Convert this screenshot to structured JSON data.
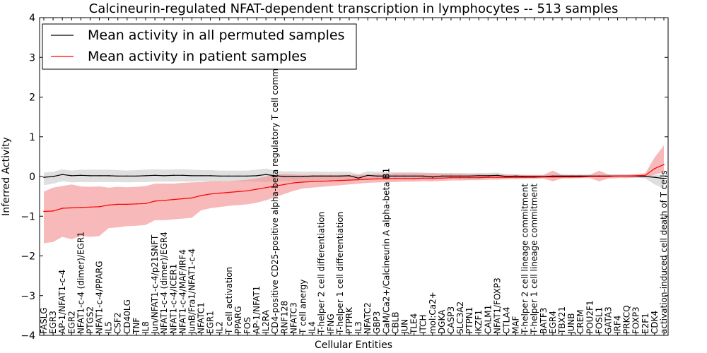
{
  "chart_data": {
    "type": "line",
    "title": "Calcineurin-regulated NFAT-dependent transcription in lymphocytes -- 513 samples",
    "xlabel": "Cellular Entities",
    "ylabel": "Inferred Activity",
    "ylim": [
      -4,
      4
    ],
    "yticks": [
      -4,
      -3,
      -2,
      -1,
      0,
      1,
      2,
      3,
      4
    ],
    "legend_position": "top-left",
    "categories": [
      "FASLG",
      "EGR3",
      "AP-1/NFAT1-c-4",
      "EGR2",
      "NFAT1-c-4 (dimer)/EGR1",
      "PTGS2",
      "NFAT1-c-4/PPARG",
      "IL5",
      "CSF2",
      "CD40LG",
      "TNF",
      "IL8",
      "Jun/NFAT1-c-4/p21SNFT",
      "NFAT1-c-4 (dimer)/EGR4",
      "NFAT1-c-4/ICER1",
      "NFAT1-c-4/MAF/IRF4",
      "JunB/Fra1/NFAT1-c-4",
      "NFATC1",
      "EGR1",
      "IL2",
      "T cell activation",
      "PPARG",
      "FOS",
      "AP-1/NFAT1",
      "IL2RA",
      "CD4-positive CD25-positive alpha-beta regulatory T cell commitment",
      "RNF128",
      "NFATC3",
      "T cell anergy",
      "IL4",
      "T-helper 2 cell differentiation",
      "IFNG",
      "T-helper 1 cell differentiation",
      "PTPRK",
      "IL3",
      "NFATC2",
      "GBP3",
      "CaM/Ca2+/Calcineurin A alpha-beta B1",
      "CBLB",
      "JUN",
      "TLE4",
      "ITCH",
      "mol:Ca2+",
      "DGKA",
      "CASP3",
      "SLC3A2",
      "PTPN1",
      "IKZF1",
      "CALM1",
      "NFAT1/FOXP3",
      "CTLA4",
      "MAF",
      "T-helper 2 cell lineage commitment",
      "T-helper 1 cell lineage commitment",
      "BATF3",
      "EGR4",
      "TBX21",
      "JUNB",
      "CREM",
      "POU2F1",
      "FOSL1",
      "GATA3",
      "IRF4",
      "PRKCQ",
      "FOXP3",
      "E2F1",
      "CDK4",
      "activation-induced cell death of T cells"
    ],
    "series": [
      {
        "name": "Mean activity in all permuted samples",
        "color": "#000000",
        "band_color": "#c0c0c0",
        "values": [
          -0.02,
          0.0,
          0.05,
          0.02,
          0.03,
          0.02,
          0.02,
          0.02,
          0.01,
          0.01,
          0.01,
          0.02,
          0.03,
          0.02,
          0.03,
          0.03,
          0.02,
          0.02,
          0.02,
          0.01,
          0.01,
          0.01,
          0.01,
          0.02,
          0.05,
          0.02,
          0.0,
          0.0,
          0.0,
          0.01,
          0.01,
          0.01,
          0.01,
          0.02,
          -0.04,
          0.03,
          0.01,
          0.01,
          0.01,
          0.01,
          0.01,
          0.01,
          -0.01,
          0.01,
          0.01,
          0.01,
          0.01,
          0.02,
          0.02,
          0.03,
          0.0,
          0.01,
          0.0,
          0.0,
          0.0,
          0.01,
          0.01,
          0.01,
          0.01,
          0.01,
          0.01,
          0.01,
          0.01,
          0.01,
          0.01,
          0.0,
          -0.02,
          -0.05
        ],
        "lower": [
          -0.22,
          -0.18,
          -0.12,
          -0.15,
          -0.14,
          -0.14,
          -0.14,
          -0.14,
          -0.14,
          -0.15,
          -0.14,
          -0.14,
          -0.13,
          -0.13,
          -0.13,
          -0.13,
          -0.13,
          -0.12,
          -0.12,
          -0.13,
          -0.12,
          -0.12,
          -0.12,
          -0.13,
          -0.14,
          -0.12,
          -0.12,
          -0.12,
          -0.12,
          -0.12,
          -0.11,
          -0.11,
          -0.1,
          -0.08,
          -0.1,
          -0.07,
          -0.07,
          -0.07,
          -0.07,
          -0.08,
          -0.09,
          -0.08,
          -0.1,
          -0.05,
          -0.05,
          -0.05,
          -0.05,
          -0.05,
          -0.04,
          -0.04,
          -0.04,
          -0.03,
          -0.03,
          -0.03,
          -0.03,
          -0.03,
          -0.03,
          -0.03,
          -0.02,
          -0.02,
          -0.02,
          -0.02,
          -0.02,
          -0.02,
          -0.02,
          -0.05,
          -0.2,
          -0.3
        ],
        "upper": [
          0.1,
          0.12,
          0.18,
          0.15,
          0.17,
          0.17,
          0.17,
          0.17,
          0.16,
          0.15,
          0.16,
          0.17,
          0.18,
          0.17,
          0.18,
          0.18,
          0.17,
          0.16,
          0.16,
          0.15,
          0.15,
          0.15,
          0.15,
          0.17,
          0.2,
          0.15,
          0.13,
          0.13,
          0.12,
          0.13,
          0.12,
          0.12,
          0.12,
          0.12,
          0.06,
          0.13,
          0.12,
          0.11,
          0.11,
          0.11,
          0.11,
          0.1,
          0.09,
          0.09,
          0.09,
          0.09,
          0.08,
          0.09,
          0.09,
          0.1,
          0.05,
          0.06,
          0.04,
          0.04,
          0.04,
          0.05,
          0.05,
          0.05,
          0.05,
          0.05,
          0.05,
          0.05,
          0.05,
          0.05,
          0.05,
          0.05,
          0.04,
          0.05
        ]
      },
      {
        "name": "Mean activity in patient samples",
        "color": "#ff0000",
        "band_color": "#f28b8b",
        "values": [
          -0.88,
          -0.87,
          -0.8,
          -0.79,
          -0.78,
          -0.77,
          -0.76,
          -0.72,
          -0.7,
          -0.7,
          -0.69,
          -0.68,
          -0.62,
          -0.6,
          -0.58,
          -0.56,
          -0.54,
          -0.48,
          -0.44,
          -0.42,
          -0.4,
          -0.38,
          -0.36,
          -0.32,
          -0.28,
          -0.24,
          -0.2,
          -0.16,
          -0.14,
          -0.13,
          -0.12,
          -0.11,
          -0.1,
          -0.09,
          -0.08,
          -0.07,
          -0.06,
          -0.06,
          -0.05,
          -0.05,
          -0.05,
          -0.04,
          -0.04,
          -0.04,
          -0.03,
          -0.03,
          -0.03,
          -0.03,
          -0.02,
          -0.02,
          -0.02,
          -0.02,
          -0.02,
          -0.02,
          -0.01,
          -0.01,
          -0.01,
          -0.01,
          -0.01,
          0.0,
          0.0,
          0.0,
          0.01,
          0.01,
          0.02,
          0.03,
          0.2,
          0.3
        ],
        "lower": [
          -1.68,
          -1.65,
          -1.52,
          -1.58,
          -1.5,
          -1.52,
          -1.5,
          -1.3,
          -1.28,
          -1.25,
          -1.24,
          -1.22,
          -1.1,
          -1.1,
          -1.08,
          -1.06,
          -1.04,
          -0.85,
          -0.8,
          -0.77,
          -0.74,
          -0.72,
          -0.7,
          -0.66,
          -0.6,
          -0.52,
          -0.44,
          -0.36,
          -0.3,
          -0.28,
          -0.26,
          -0.24,
          -0.22,
          -0.2,
          -0.18,
          -0.16,
          -0.15,
          -0.14,
          -0.14,
          -0.13,
          -0.13,
          -0.12,
          -0.12,
          -0.11,
          -0.1,
          -0.1,
          -0.09,
          -0.09,
          -0.08,
          -0.08,
          -0.07,
          -0.07,
          -0.06,
          -0.06,
          -0.05,
          -0.12,
          -0.05,
          -0.05,
          -0.04,
          -0.04,
          -0.12,
          -0.05,
          -0.04,
          -0.04,
          -0.03,
          -0.02,
          0.05,
          0.1
        ],
        "upper": [
          -0.38,
          -0.28,
          -0.24,
          -0.2,
          -0.25,
          -0.26,
          -0.25,
          -0.28,
          -0.26,
          -0.27,
          -0.26,
          -0.24,
          -0.18,
          -0.18,
          -0.18,
          -0.16,
          -0.15,
          -0.14,
          -0.12,
          -0.12,
          -0.12,
          -0.1,
          -0.08,
          -0.05,
          0.0,
          0.04,
          0.06,
          0.05,
          0.04,
          0.04,
          0.04,
          0.04,
          0.04,
          0.04,
          0.04,
          0.05,
          0.06,
          0.06,
          0.08,
          0.08,
          0.08,
          0.08,
          0.08,
          0.07,
          0.07,
          0.06,
          0.06,
          0.06,
          0.05,
          0.05,
          0.05,
          0.04,
          0.04,
          0.04,
          0.04,
          0.15,
          0.04,
          0.04,
          0.04,
          0.04,
          0.15,
          0.05,
          0.05,
          0.05,
          0.06,
          0.08,
          0.48,
          0.78
        ]
      }
    ]
  }
}
